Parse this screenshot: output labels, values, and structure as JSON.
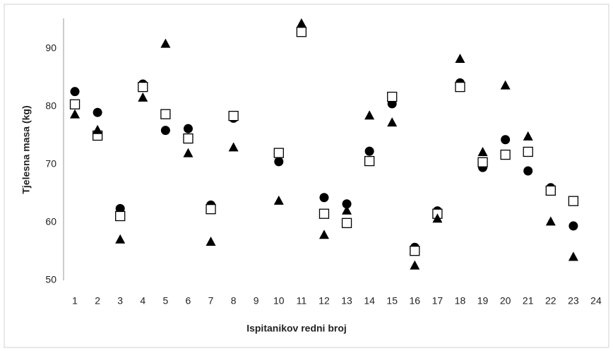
{
  "chart_data": {
    "type": "scatter",
    "x_label": "Ispitanikov redni broj",
    "y_label": "Tjelesna masa (kg)",
    "x": [
      1,
      2,
      3,
      4,
      5,
      6,
      7,
      8,
      10,
      11,
      12,
      13,
      14,
      15,
      16,
      17,
      18,
      19,
      20,
      21,
      22,
      23
    ],
    "series": [
      {
        "marker": "circle",
        "color": "#000000",
        "values": [
          82.6,
          79.0,
          62.4,
          83.9,
          75.9,
          76.2,
          63.0,
          78.0,
          70.5,
          93.0,
          64.3,
          63.2,
          72.3,
          80.5,
          55.7,
          62.0,
          84.1,
          69.5,
          74.3,
          68.9,
          66.0,
          59.4
        ]
      },
      {
        "marker": "square",
        "color": "#000000",
        "values": [
          80.4,
          75.0,
          61.1,
          83.4,
          78.7,
          74.5,
          62.3,
          78.4,
          72.0,
          92.9,
          61.5,
          59.9,
          70.6,
          81.7,
          55.1,
          61.5,
          83.4,
          70.4,
          71.7,
          72.2,
          65.5,
          63.7
        ]
      },
      {
        "marker": "triangle",
        "color": "#000000",
        "values": [
          78.7,
          76.0,
          57.1,
          81.6,
          90.9,
          72.0,
          56.7,
          73.0,
          63.8,
          94.4,
          57.9,
          62.1,
          78.5,
          77.3,
          52.6,
          60.7,
          88.3,
          72.2,
          83.7,
          74.9,
          60.2,
          54.1
        ]
      }
    ],
    "xlim": [
      0.5,
      24.5
    ],
    "ylim": [
      50,
      95
    ],
    "xticks": [
      1,
      2,
      3,
      4,
      5,
      6,
      7,
      8,
      9,
      10,
      11,
      12,
      13,
      14,
      15,
      16,
      17,
      18,
      19,
      20,
      21,
      22,
      23,
      24
    ],
    "yticks": [
      50,
      60,
      70,
      80,
      90
    ],
    "grid": false
  }
}
